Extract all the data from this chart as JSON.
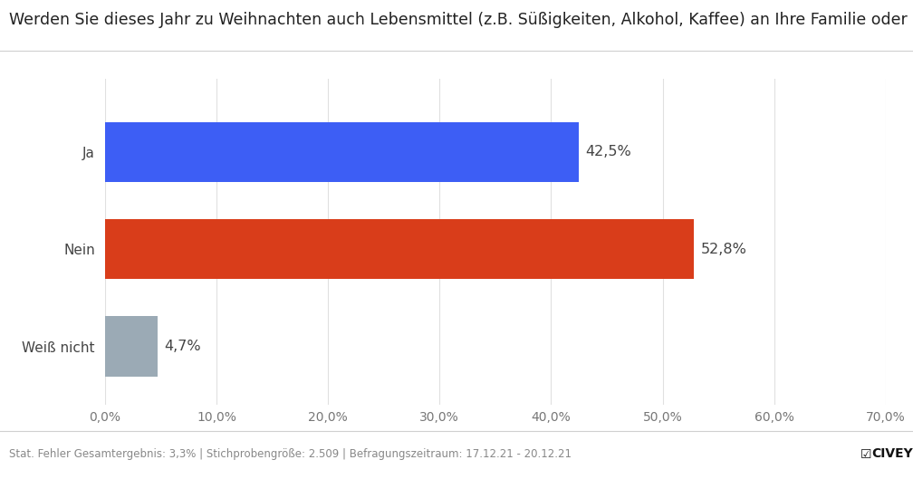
{
  "title": "Werden Sie dieses Jahr zu Weihnachten auch Lebensmittel (z.B. Süßigkeiten, Alkohol, Kaffee) an Ihre Familie oder Freunde verschenken?",
  "categories": [
    "Ja",
    "Nein",
    "Weiß nicht"
  ],
  "values": [
    42.5,
    52.8,
    4.7
  ],
  "colors": [
    "#3d5ef5",
    "#d93d1a",
    "#9baab5"
  ],
  "label_texts": [
    "42,5%",
    "52,8%",
    "4,7%"
  ],
  "xlim": [
    0,
    70
  ],
  "xticks": [
    0,
    10,
    20,
    30,
    40,
    50,
    60,
    70
  ],
  "xtick_labels": [
    "0,0%",
    "10,0%",
    "20,0%",
    "30,0%",
    "40,0%",
    "50,0%",
    "60,0%",
    "70,0%"
  ],
  "footer_text": "Stat. Fehler Gesamtergebnis: 3,3% | Stichprobengröße: 2.509 | Befragungszeitraum: 17.12.21 - 20.12.21",
  "background_color": "#ffffff",
  "bar_height": 0.62,
  "title_fontsize": 12.5,
  "label_fontsize": 11.5,
  "ytick_fontsize": 11,
  "xtick_fontsize": 10,
  "footer_fontsize": 8.5
}
